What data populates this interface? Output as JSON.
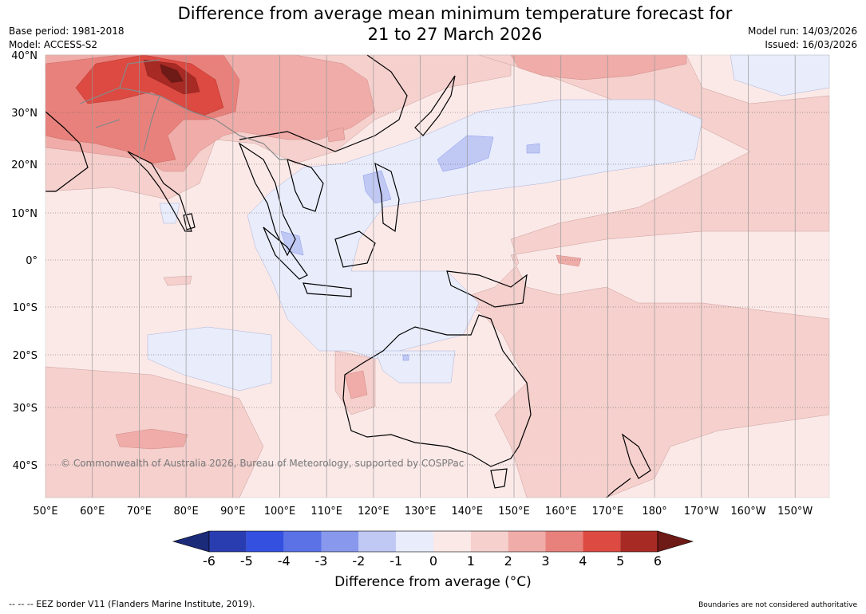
{
  "title_line1": "Difference from average mean minimum temperature forecast for",
  "title_line2": "21 to 27 March 2026",
  "base_period": "Base period: 1981-2018",
  "model": "Model: ACCESS-S2",
  "model_run": "Model run: 14/03/2026",
  "issued": "Issued: 16/03/2026",
  "copyright": "© Commonwealth of Australia 2026, Bureau of Meteorology, supported by COSPPac",
  "lat_labels": [
    "40°N",
    "30°N",
    "20°N",
    "10°N",
    "0°",
    "10°S",
    "20°S",
    "30°S",
    "40°S"
  ],
  "lon_labels": [
    "50°E",
    "60°E",
    "70°E",
    "80°E",
    "90°E",
    "100°E",
    "110°E",
    "120°E",
    "130°E",
    "140°E",
    "150°E",
    "160°E",
    "170°E",
    "180°",
    "170°W",
    "160°W",
    "150°W"
  ],
  "colorbar": {
    "ticks": [
      "-6",
      "-5",
      "-4",
      "-3",
      "-2",
      "-1",
      "0",
      "1",
      "2",
      "3",
      "4",
      "5",
      "6"
    ],
    "colors": [
      "#1c2a7a",
      "#2a3db0",
      "#3350e0",
      "#5a72e6",
      "#8898ec",
      "#c0c8f4",
      "#e8ecfb",
      "#fbe9e8",
      "#f5d0cd",
      "#efaca8",
      "#e8817c",
      "#dc4a42",
      "#a82a24",
      "#6e1a16"
    ],
    "label": "Difference from average (°C)"
  },
  "footer_left": "--  --  -- EEZ border V11 (Flanders Marine Institute, 2019).",
  "footer_right": "Boundaries are not considered authoritative"
}
